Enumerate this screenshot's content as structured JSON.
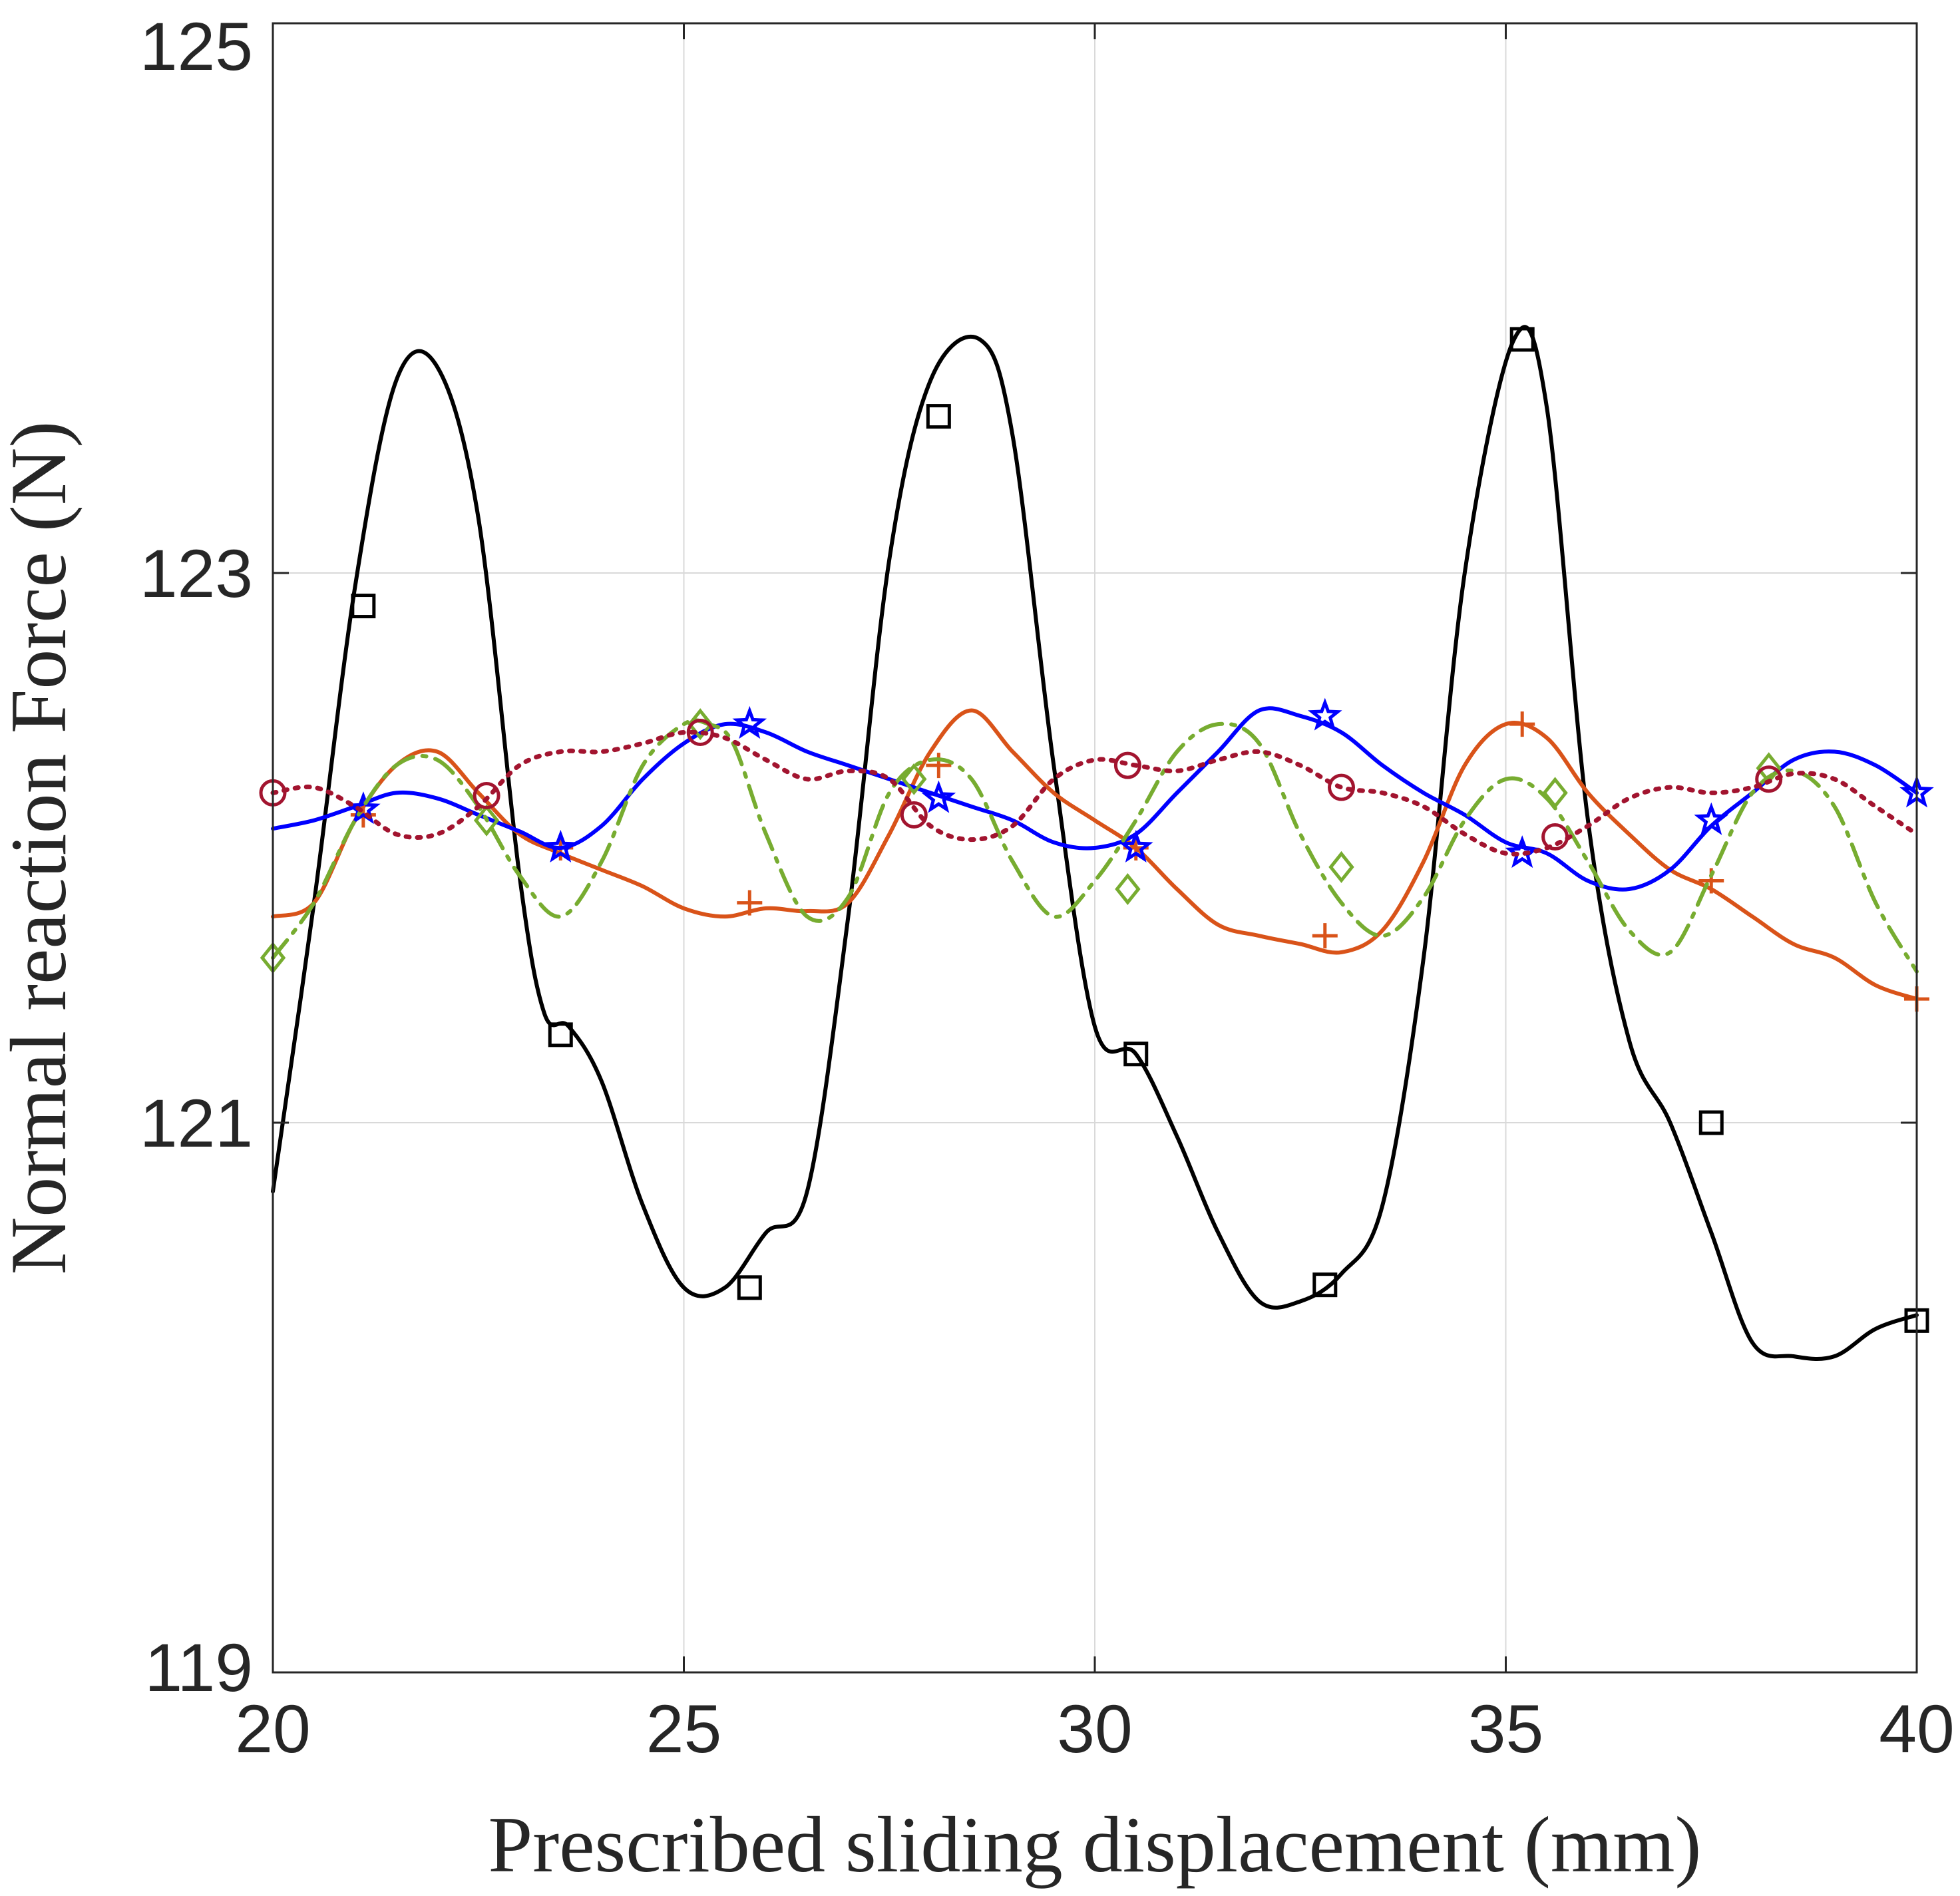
{
  "chart_data": {
    "type": "line",
    "xlabel": "Prescribed sliding displacement (mm)",
    "ylabel": "Normal reaction Force (N)",
    "xlim": [
      20,
      40
    ],
    "ylim": [
      119,
      125
    ],
    "xticks": [
      20,
      25,
      30,
      35,
      40
    ],
    "yticks": [
      119,
      121,
      123,
      125
    ],
    "grid": true,
    "series": [
      {
        "color": "#000000",
        "dash": "solid",
        "marker": "square",
        "x": [
          20,
          20.5,
          21,
          21.5,
          22,
          22.5,
          23,
          23.3,
          23.6,
          24,
          24.5,
          25,
          25.5,
          26,
          26.5,
          27,
          27.5,
          28,
          28.6,
          29,
          29.5,
          30,
          30.5,
          31,
          31.5,
          32,
          32.5,
          33,
          33.5,
          34,
          34.5,
          35.1,
          35.5,
          36,
          36.5,
          37,
          37.5,
          38,
          38.5,
          39,
          39.5,
          40
        ],
        "y": [
          120.75,
          121.8,
          122.95,
          123.7,
          123.75,
          123.2,
          121.9,
          121.4,
          121.35,
          121.15,
          120.7,
          120.4,
          120.4,
          120.6,
          120.75,
          121.75,
          123.05,
          123.7,
          123.85,
          123.5,
          122.3,
          121.35,
          121.25,
          120.95,
          120.6,
          120.35,
          120.35,
          120.45,
          120.7,
          121.6,
          123.0,
          123.85,
          123.6,
          122.1,
          121.3,
          121.0,
          120.6,
          120.2,
          120.15,
          120.15,
          120.25,
          120.3
        ],
        "marker_x": [
          21.1,
          23.5,
          25.8,
          28.1,
          30.5,
          32.8,
          35.2,
          37.5,
          40
        ],
        "marker_y": [
          122.88,
          121.32,
          120.4,
          123.57,
          121.25,
          120.41,
          123.85,
          121.0,
          120.28
        ]
      },
      {
        "color": "#d95319",
        "dash": "solid",
        "marker": "plus",
        "x": [
          20,
          20.5,
          21,
          21.5,
          22,
          22.5,
          23,
          23.5,
          24,
          24.5,
          25,
          25.5,
          26,
          26.5,
          27,
          27.5,
          28,
          28.5,
          29,
          29.5,
          30,
          30.5,
          31,
          31.5,
          32,
          32.5,
          33,
          33.5,
          34,
          34.5,
          35,
          35.5,
          36,
          36.5,
          37,
          37.5,
          38,
          38.5,
          39,
          39.5,
          40
        ],
        "y": [
          121.75,
          121.8,
          122.1,
          122.3,
          122.35,
          122.2,
          122.05,
          121.98,
          121.92,
          121.86,
          121.78,
          121.75,
          121.78,
          121.77,
          121.8,
          122.05,
          122.35,
          122.5,
          122.35,
          122.2,
          122.1,
          122.0,
          121.85,
          121.72,
          121.68,
          121.65,
          121.62,
          121.7,
          121.95,
          122.3,
          122.45,
          122.4,
          122.2,
          122.05,
          121.92,
          121.85,
          121.75,
          121.65,
          121.6,
          121.5,
          121.45
        ],
        "marker_x": [
          21.1,
          23.5,
          25.8,
          28.1,
          30.5,
          32.8,
          35.2,
          37.5,
          40
        ],
        "marker_y": [
          122.12,
          122.0,
          121.8,
          122.3,
          122.0,
          121.68,
          122.45,
          121.88,
          121.45
        ]
      },
      {
        "color": "#0000ff",
        "dash": "solid",
        "marker": "star",
        "x": [
          20,
          20.5,
          21,
          21.5,
          22,
          22.5,
          23,
          23.5,
          24,
          24.5,
          25,
          25.5,
          26,
          26.5,
          27,
          27.5,
          28,
          28.5,
          29,
          29.5,
          30,
          30.5,
          31,
          31.5,
          32,
          32.5,
          33,
          33.5,
          34,
          34.5,
          35,
          35.5,
          36,
          36.5,
          37,
          37.5,
          38,
          38.5,
          39,
          39.5,
          40
        ],
        "y": [
          122.07,
          122.1,
          122.15,
          122.2,
          122.18,
          122.12,
          122.06,
          122.0,
          122.08,
          122.25,
          122.38,
          122.45,
          122.42,
          122.35,
          122.3,
          122.25,
          122.2,
          122.15,
          122.1,
          122.02,
          122.0,
          122.05,
          122.2,
          122.35,
          122.5,
          122.48,
          122.42,
          122.3,
          122.2,
          122.12,
          122.02,
          121.98,
          121.88,
          121.85,
          121.92,
          122.08,
          122.2,
          122.32,
          122.35,
          122.3,
          122.2
        ],
        "marker_x": [
          21.1,
          23.5,
          25.8,
          28.1,
          30.5,
          32.8,
          35.2,
          37.5,
          40
        ],
        "marker_y": [
          122.14,
          122.0,
          122.45,
          122.18,
          122.0,
          122.48,
          121.98,
          122.1,
          122.2
        ]
      },
      {
        "color": "#77ac30",
        "dash": "dashdot",
        "marker": "diamond",
        "x": [
          20,
          20.5,
          21,
          21.5,
          22,
          22.5,
          23,
          23.5,
          24,
          24.5,
          25,
          25.3,
          25.6,
          26,
          26.5,
          27,
          27.5,
          28,
          28.5,
          29,
          29.5,
          30,
          30.5,
          31,
          31.5,
          32,
          32.5,
          33,
          33.5,
          34,
          34.5,
          35,
          35.5,
          36,
          36.5,
          37,
          37.5,
          38,
          38.5,
          39,
          39.5,
          40
        ],
        "y": [
          121.6,
          121.8,
          122.1,
          122.3,
          122.32,
          122.15,
          121.9,
          121.75,
          121.95,
          122.3,
          122.45,
          122.45,
          122.38,
          122.05,
          121.75,
          121.82,
          122.2,
          122.32,
          122.25,
          121.95,
          121.75,
          121.88,
          122.1,
          122.35,
          122.45,
          122.38,
          122.05,
          121.8,
          121.68,
          121.82,
          122.1,
          122.25,
          122.18,
          121.95,
          121.7,
          121.62,
          121.9,
          122.2,
          122.28,
          122.15,
          121.8,
          121.55
        ],
        "marker_x": [
          20,
          22.6,
          25.2,
          27.8,
          30.4,
          33.0,
          35.6,
          38.2
        ],
        "marker_y": [
          121.6,
          122.1,
          122.45,
          122.25,
          121.85,
          121.93,
          122.2,
          122.29
        ]
      },
      {
        "color": "#a2142f",
        "dash": "dotted",
        "marker": "circle",
        "x": [
          20,
          20.5,
          21,
          21.5,
          22,
          22.5,
          23,
          23.5,
          24,
          24.5,
          25,
          25.5,
          26,
          26.5,
          27,
          27.5,
          28,
          28.5,
          29,
          29.5,
          30,
          30.5,
          31,
          31.5,
          32,
          32.5,
          33,
          33.5,
          34,
          34.5,
          35,
          35.5,
          36,
          36.5,
          37,
          37.5,
          38,
          38.5,
          39,
          39.5,
          40
        ],
        "y": [
          122.2,
          122.22,
          122.15,
          122.05,
          122.05,
          122.15,
          122.3,
          122.35,
          122.35,
          122.38,
          122.42,
          122.4,
          122.32,
          122.25,
          122.28,
          122.25,
          122.08,
          122.03,
          122.08,
          122.25,
          122.32,
          122.3,
          122.28,
          122.32,
          122.35,
          122.3,
          122.22,
          122.2,
          122.15,
          122.05,
          121.98,
          122.0,
          122.08,
          122.18,
          122.22,
          122.2,
          122.22,
          122.27,
          122.25,
          122.15,
          122.05
        ],
        "marker_x": [
          20,
          22.6,
          25.2,
          27.8,
          30.4,
          33.0,
          35.6,
          38.2
        ],
        "marker_y": [
          122.2,
          122.19,
          122.42,
          122.12,
          122.3,
          122.22,
          122.04,
          122.25
        ]
      }
    ]
  }
}
